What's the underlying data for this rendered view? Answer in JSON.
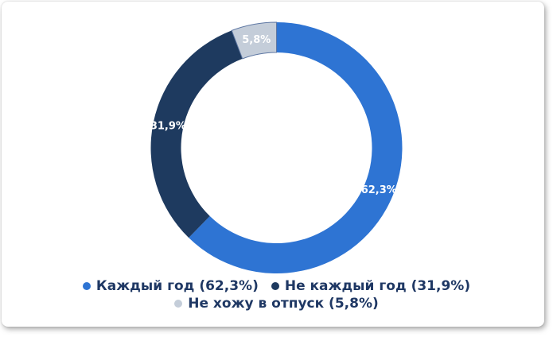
{
  "chart_data": {
    "type": "pie",
    "subtype": "donut",
    "title": "",
    "labels": [
      "Каждый год",
      "Не каждый год",
      "Не хожу в отпуск"
    ],
    "values": [
      62.3,
      31.9,
      5.8
    ],
    "slice_labels": [
      "62,3%",
      "31,9%",
      "5,8%"
    ],
    "colors": [
      "#2e74d3",
      "#1e3a5f",
      "#c4cdd9"
    ],
    "slice_strokes": [
      "none",
      "none",
      "#5e77a3"
    ],
    "slice_label_color": "#ffffff",
    "start_angle_deg": 0,
    "direction": "clockwise",
    "legend_position": "bottom",
    "legend_text_color": "#1f3864",
    "legend": [
      {
        "label": "Каждый год (62,3%)",
        "color": "#2e74d3"
      },
      {
        "label": "Не каждый год (31,9%)",
        "color": "#1e3a5f"
      },
      {
        "label": "Не хожу в отпуск (5,8%)",
        "color": "#c4cdd9"
      }
    ]
  }
}
